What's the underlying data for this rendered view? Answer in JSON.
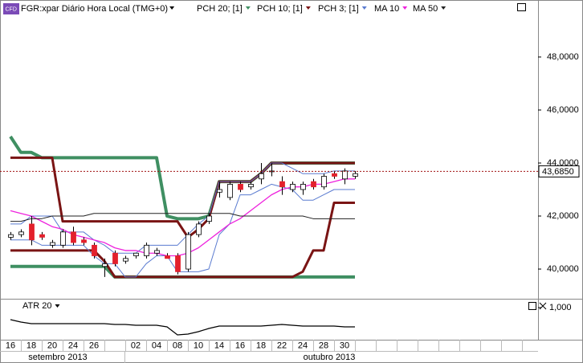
{
  "chart_data": [
    {
      "type": "candlestick",
      "title": "FGR:xpar Diário Hora Local (TMG+0)",
      "categories": [
        "16",
        null,
        "18",
        null,
        "20",
        null,
        "24",
        null,
        "26",
        null,
        null,
        null,
        "02",
        null,
        "04",
        null,
        "08",
        null,
        "10",
        null,
        "14",
        null,
        "16",
        null,
        "18",
        null,
        "22",
        null,
        "24",
        null,
        "28",
        null,
        "30",
        null
      ],
      "periods": [
        "setembro 2013",
        "outubro 2013"
      ],
      "open": [
        41.2,
        41.3,
        41.7,
        41.3,
        40.9,
        40.9,
        41.4,
        41.1,
        40.9,
        40.1,
        40.6,
        40.3,
        40.5,
        40.5,
        40.6,
        40.5,
        40.5,
        40.0,
        41.3,
        41.8,
        42.9,
        42.7,
        43.2,
        43.1,
        43.4,
        43.7,
        43.3,
        43.0,
        43.0,
        43.3,
        43.1,
        43.6,
        43.4,
        43.5
      ],
      "high": [
        41.4,
        41.5,
        42.0,
        41.4,
        41.1,
        41.5,
        41.6,
        41.2,
        41.0,
        40.4,
        40.7,
        40.5,
        40.6,
        41.0,
        40.8,
        40.6,
        40.6,
        41.4,
        41.8,
        42.1,
        43.3,
        43.3,
        43.3,
        43.3,
        44.0,
        44.0,
        43.5,
        43.3,
        43.3,
        43.4,
        43.6,
        43.7,
        43.8,
        43.7
      ],
      "low": [
        41.1,
        41.2,
        40.9,
        41.1,
        40.8,
        40.8,
        40.9,
        40.9,
        40.4,
        39.7,
        40.1,
        40.2,
        40.4,
        40.4,
        40.5,
        40.4,
        39.8,
        39.9,
        41.2,
        41.7,
        42.7,
        42.6,
        42.9,
        43.0,
        43.2,
        43.5,
        42.8,
        42.9,
        42.8,
        43.0,
        43.0,
        43.4,
        43.2,
        43.4
      ],
      "close": [
        41.3,
        41.4,
        41.1,
        41.2,
        41.0,
        41.4,
        41.0,
        41.0,
        40.5,
        40.2,
        40.2,
        40.4,
        40.6,
        40.9,
        40.7,
        40.4,
        39.9,
        41.3,
        41.7,
        42.0,
        43.0,
        43.2,
        43.0,
        43.2,
        43.6,
        43.7,
        43.1,
        43.2,
        43.2,
        43.1,
        43.5,
        43.5,
        43.7,
        43.6
      ],
      "up_color": "#ffffff",
      "down_color": "#e3202c",
      "series": [
        {
          "name": "PCH 20; [1]",
          "color": "#3f8f62",
          "upper": [
            45.0,
            44.4,
            44.4,
            44.2,
            44.2,
            44.2,
            44.2,
            44.2,
            44.2,
            44.2,
            44.2,
            44.2,
            44.2,
            44.2,
            44.2,
            42.0,
            41.9,
            41.9,
            41.9,
            42.0,
            43.3,
            43.3,
            43.3,
            43.3,
            43.6,
            44.0,
            44.0,
            44.0,
            44.0,
            44.0,
            44.0,
            44.0,
            44.0,
            44.0
          ],
          "lower": [
            40.1,
            40.1,
            40.1,
            40.1,
            40.1,
            40.1,
            40.1,
            40.1,
            40.1,
            40.1,
            39.7,
            39.7,
            39.7,
            39.7,
            39.7,
            39.7,
            39.7,
            39.7,
            39.7,
            39.7,
            39.7,
            39.7,
            39.7,
            39.7,
            39.7,
            39.7,
            39.7,
            39.7,
            39.7,
            39.7,
            39.7,
            39.7,
            39.7,
            39.7
          ]
        },
        {
          "name": "PCH 10; [1]",
          "color": "#7a1414",
          "upper": [
            44.2,
            44.2,
            44.2,
            44.2,
            44.2,
            41.8,
            41.8,
            41.8,
            41.8,
            41.8,
            41.8,
            41.8,
            41.8,
            41.8,
            41.8,
            41.8,
            41.8,
            41.2,
            41.5,
            41.9,
            43.3,
            43.3,
            43.3,
            43.3,
            43.6,
            44.0,
            44.0,
            44.0,
            44.0,
            44.0,
            44.0,
            44.0,
            44.0,
            44.0
          ],
          "lower": [
            40.7,
            40.7,
            40.7,
            40.7,
            40.7,
            40.7,
            40.7,
            40.7,
            40.7,
            40.3,
            39.7,
            39.7,
            39.7,
            39.7,
            39.7,
            39.7,
            39.7,
            39.7,
            39.7,
            39.7,
            39.7,
            39.7,
            39.7,
            39.7,
            39.7,
            39.7,
            39.7,
            39.7,
            39.9,
            40.7,
            40.7,
            42.5,
            42.5,
            42.5
          ]
        },
        {
          "name": "PCH 3; [1]",
          "color": "#5a7bd0",
          "upper": [
            41.7,
            41.7,
            42.0,
            42.0,
            42.0,
            41.4,
            41.4,
            41.4,
            41.1,
            40.9,
            40.6,
            40.6,
            40.6,
            40.9,
            40.9,
            40.9,
            40.9,
            41.3,
            41.7,
            42.0,
            43.3,
            43.3,
            43.3,
            43.3,
            43.6,
            44.0,
            44.0,
            43.8,
            43.6,
            43.6,
            43.6,
            43.7,
            43.7,
            43.7
          ],
          "lower": [
            41.1,
            41.1,
            41.1,
            40.9,
            40.9,
            40.9,
            40.9,
            40.9,
            40.5,
            40.2,
            40.2,
            39.7,
            39.7,
            40.2,
            40.5,
            40.5,
            39.9,
            39.9,
            39.9,
            40.0,
            41.3,
            41.7,
            42.8,
            42.8,
            43.0,
            43.2,
            43.1,
            43.0,
            42.6,
            42.6,
            42.8,
            43.0,
            43.0,
            43.0
          ]
        },
        {
          "name": "MA 10",
          "color": "#ee22dd",
          "values": [
            42.2,
            42.1,
            42.0,
            41.8,
            41.6,
            41.5,
            41.3,
            41.2,
            41.1,
            41.0,
            40.8,
            40.7,
            40.7,
            40.6,
            40.6,
            40.5,
            40.5,
            40.6,
            40.8,
            41.1,
            41.4,
            41.7,
            41.9,
            42.2,
            42.5,
            42.8,
            43.0,
            43.1,
            43.1,
            43.2,
            43.2,
            43.3,
            43.4,
            43.4
          ]
        },
        {
          "name": "MA 50",
          "color": "#222222",
          "values": [
            41.8,
            41.8,
            41.9,
            41.9,
            42.0,
            42.0,
            42.0,
            42.0,
            42.1,
            42.1,
            42.1,
            42.1,
            42.1,
            42.1,
            42.1,
            42.1,
            42.1,
            42.1,
            42.1,
            42.1,
            42.1,
            42.1,
            42.0,
            42.0,
            42.0,
            42.0,
            42.0,
            42.0,
            42.0,
            41.9,
            41.9,
            41.9,
            41.9,
            41.9
          ]
        }
      ],
      "last_price": {
        "value": 43.685,
        "label": "43,6850"
      },
      "ylim": [
        38.88,
        50.15
      ],
      "yticks": [
        {
          "value": 40,
          "label": "40,0000"
        },
        {
          "value": 42,
          "label": "42,0000"
        },
        {
          "value": 44,
          "label": "44,0000"
        },
        {
          "value": 46,
          "label": "46,0000"
        },
        {
          "value": 48,
          "label": "48,0000"
        }
      ]
    },
    {
      "type": "line",
      "series": [
        {
          "name": "ATR 20",
          "color": "#000000",
          "values": [
            0.85,
            0.82,
            0.8,
            0.8,
            0.8,
            0.8,
            0.8,
            0.8,
            0.8,
            0.8,
            0.79,
            0.79,
            0.78,
            0.78,
            0.78,
            0.76,
            0.66,
            0.67,
            0.7,
            0.74,
            0.77,
            0.77,
            0.77,
            0.77,
            0.77,
            0.78,
            0.79,
            0.78,
            0.77,
            0.77,
            0.77,
            0.77,
            0.76,
            0.76
          ]
        }
      ],
      "ylim": [
        0.6,
        1.1
      ],
      "yticks": [
        {
          "value": 1,
          "label": "1,000"
        }
      ]
    }
  ]
}
